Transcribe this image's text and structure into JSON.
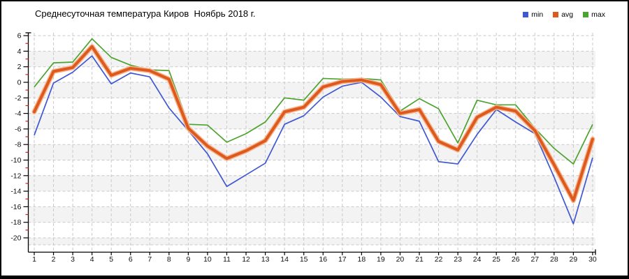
{
  "window": {
    "background": "#ffffff",
    "border_color": "#000000"
  },
  "chart_data": {
    "type": "line",
    "title": "Среднесуточная температура Киров  Ноябрь 2018 г.",
    "xlabel": "",
    "ylabel": "",
    "x": [
      1,
      2,
      3,
      4,
      5,
      6,
      7,
      8,
      9,
      10,
      11,
      12,
      13,
      14,
      15,
      16,
      17,
      18,
      19,
      20,
      21,
      22,
      23,
      24,
      25,
      26,
      27,
      28,
      29,
      30
    ],
    "x_tick_labels": [
      "1",
      "2",
      "3",
      "4",
      "5",
      "6",
      "7",
      "8",
      "9",
      "10",
      "11",
      "12",
      "13",
      "14",
      "15",
      "16",
      "17",
      "18",
      "19",
      "20",
      "21",
      "22",
      "23",
      "24",
      "25",
      "26",
      "27",
      "28",
      "29",
      "30"
    ],
    "y_ticks": [
      6,
      4,
      2,
      0,
      -2,
      -4,
      -6,
      -8,
      -10,
      -12,
      -14,
      -16,
      -18,
      -20
    ],
    "ylim": [
      -20,
      6
    ],
    "grid": true,
    "grid_color": "#c9c9c9",
    "band_color": "#f3f3f3",
    "axis_color": "#000000",
    "minor_tick_color": "#cc2222",
    "legend_position": "top-right",
    "series": [
      {
        "name": "min",
        "color": "#3f58d1",
        "values": [
          -6.8,
          -0.1,
          1.3,
          3.4,
          -0.2,
          1.2,
          0.7,
          -3.3,
          -6.2,
          -9.2,
          -13.4,
          -11.9,
          -10.4,
          -5.4,
          -4.3,
          -1.9,
          -0.5,
          0.0,
          -1.9,
          -4.4,
          -5.0,
          -10.2,
          -10.5,
          -6.7,
          -3.5,
          -5.1,
          -6.6,
          -12.2,
          -18.2,
          -9.7
        ]
      },
      {
        "name": "avg",
        "color": "#dd5a1f",
        "halo_color": "#f7b289",
        "values": [
          -3.8,
          1.4,
          1.9,
          4.6,
          0.9,
          1.8,
          1.5,
          0.4,
          -5.9,
          -8.2,
          -9.8,
          -8.8,
          -7.5,
          -3.8,
          -3.2,
          -0.6,
          0.1,
          0.3,
          -0.3,
          -4.0,
          -3.5,
          -7.6,
          -8.7,
          -4.5,
          -3.2,
          -3.7,
          -6.2,
          -10.6,
          -15.2,
          -7.3
        ]
      },
      {
        "name": "max",
        "color": "#4da32f",
        "values": [
          -0.6,
          2.5,
          2.6,
          5.6,
          3.2,
          2.2,
          1.6,
          1.5,
          -5.4,
          -5.5,
          -7.7,
          -6.6,
          -5.1,
          -2.0,
          -2.3,
          0.5,
          0.4,
          0.5,
          0.3,
          -3.7,
          -2.1,
          -3.4,
          -7.8,
          -2.3,
          -2.9,
          -2.9,
          -5.9,
          -8.5,
          -10.5,
          -5.4
        ]
      }
    ]
  }
}
